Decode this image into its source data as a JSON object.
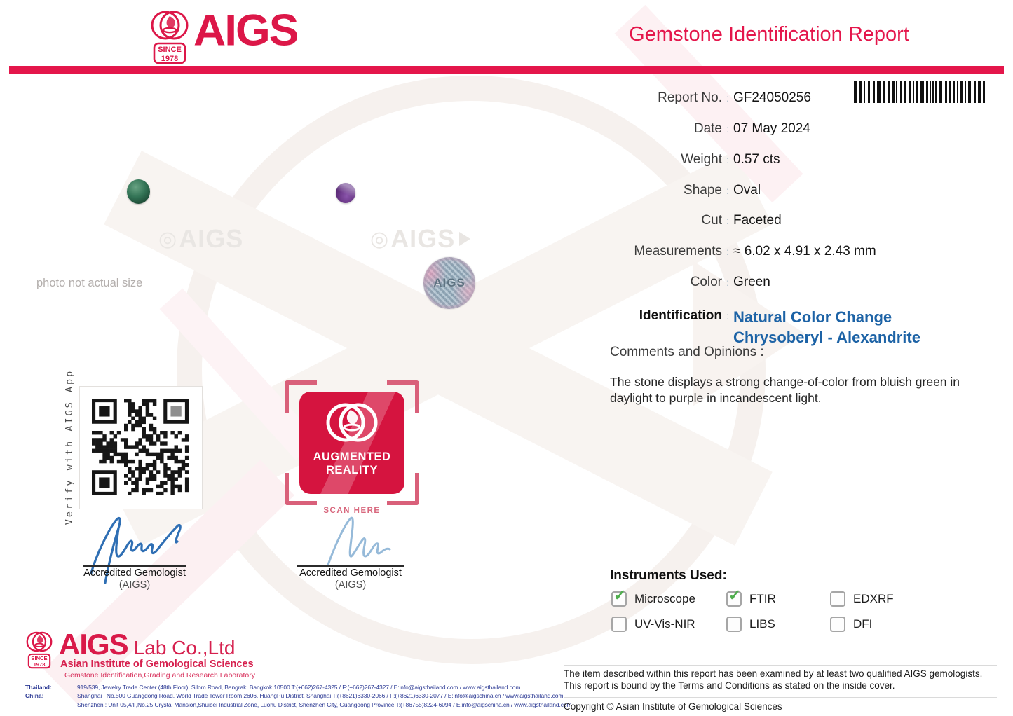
{
  "header": {
    "brand": "AIGS",
    "since_line1": "SINCE",
    "since_line2": "1978",
    "title": "Gemstone Identification Report"
  },
  "report": {
    "colon": ":",
    "rows": [
      {
        "label": "Report No.",
        "value": "GF24050256"
      },
      {
        "label": "Date",
        "value": "07 May 2024"
      },
      {
        "label": "Weight",
        "value": "0.57 cts"
      },
      {
        "label": "Shape",
        "value": "Oval"
      },
      {
        "label": "Cut",
        "value": "Faceted"
      },
      {
        "label": "Measurements",
        "value": "≈ 6.02 x 4.91 x 2.43 mm"
      },
      {
        "label": "Color",
        "value": "Green"
      }
    ],
    "identification_label": "Identification",
    "identification_value": "Natural Color Change Chrysoberyl - Alexandrite",
    "comments_heading": "Comments and Opinions :",
    "comments_text": "The stone displays a strong change-of-color from bluish green in daylight to purple in incandescent light."
  },
  "photo_area": {
    "note": "photo not actual size",
    "ghost_icon": "◎",
    "ghost_text": "AIGS",
    "sticker_text": "AIGS"
  },
  "verify": {
    "vertical_label": "Verify with AIGS App"
  },
  "ar_badge": {
    "line1": "AUGMENTED",
    "line2": "REALITY",
    "scan": "SCAN HERE"
  },
  "signatures": [
    {
      "title": "Accredited Gemologist",
      "subtitle": "(AIGS)"
    },
    {
      "title": "Accredited Gemologist",
      "subtitle": "(AIGS)"
    }
  ],
  "instruments": {
    "heading": "Instruments Used:",
    "items": [
      {
        "label": "Microscope",
        "checked": true
      },
      {
        "label": "FTIR",
        "checked": true
      },
      {
        "label": "EDXRF",
        "checked": false
      },
      {
        "label": "UV-Vis-NIR",
        "checked": false
      },
      {
        "label": "LIBS",
        "checked": false
      },
      {
        "label": "DFI",
        "checked": false
      }
    ]
  },
  "footer_left": {
    "brand": "AIGS",
    "brand_suffix": "Lab Co.,Ltd",
    "line1": "Asian Institute of Gemological Sciences",
    "line2": "Gemstone Identification,Grading and Research Laboratory",
    "addresses": [
      {
        "label": "Thailand:",
        "text": "919/539, Jewelry Trade Center (48th Floor), Silom Road, Bangrak, Bangkok 10500   T:(+662)267-4325 / F:(+662)267-4327 / E:info@aigsthailand.com / www.aigsthailand.com"
      },
      {
        "label": "China:",
        "text": "Shanghai :  No.500 Guangdong Road, World Trade Tower  Room 2606, HuangPu District, Shanghai   T:(+8621)6330-2066 / F:(+8621)6330-2077 / E:info@aigschina.cn /  www.aigsthailand.com"
      },
      {
        "label": "",
        "text": "Shenzhen :  Unit 05,4/F,No.25 Crystal Mansion,Shuibei Industrial Zone, Luohu District, Shenzhen City, Guangdong Province   T:(+86755)8224-6094 / E:info@aigschina.cn /  www.aigsthailand.com"
      }
    ]
  },
  "footer_right": {
    "disclaimer_line1": "The item described within this report has been examined by at least two qualified AIGS gemologists.",
    "disclaimer_line2": "This report is bound by the Terms and Conditions as stated on the inside cover.",
    "copyright": "Copyright © Asian Institute of Gemological Sciences"
  },
  "colors": {
    "accent_red": "#e4164b",
    "identification_blue": "#1d63a6",
    "address_blue": "#2c3a94",
    "check_green": "#4fae4d"
  }
}
